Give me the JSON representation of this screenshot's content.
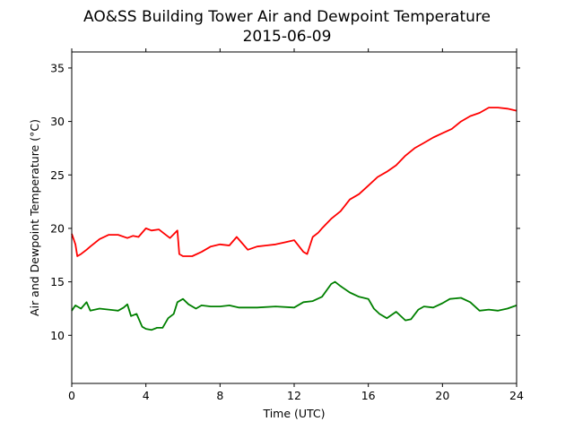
{
  "chart_data": {
    "type": "line",
    "title": "AO&SS Building Tower Air and Dewpoint Temperature",
    "subtitle": "2015-06-09",
    "xlabel": "Time (UTC)",
    "ylabel": "Air and Dewpoint Temperature (°C)",
    "xlim": [
      0,
      24
    ],
    "ylim": [
      5.5,
      36.5
    ],
    "xticks": [
      0,
      4,
      8,
      12,
      16,
      20,
      24
    ],
    "yticks": [
      10,
      15,
      20,
      25,
      30,
      35
    ],
    "grid": false,
    "series": [
      {
        "color": "#ff0000",
        "x": [
          0,
          0.1,
          0.2,
          0.3,
          0.5,
          0.8,
          1.0,
          1.5,
          2.0,
          2.5,
          3.0,
          3.3,
          3.6,
          4.0,
          4.3,
          4.7,
          5.0,
          5.3,
          5.7,
          5.8,
          6.0,
          6.5,
          7.0,
          7.5,
          8.0,
          8.5,
          8.9,
          9.2,
          9.5,
          10.0,
          10.5,
          11.0,
          11.5,
          12.0,
          12.5,
          12.7,
          13.0,
          13.3,
          13.5,
          14.0,
          14.5,
          15.0,
          15.5,
          16.0,
          16.5,
          17.0,
          17.5,
          18.0,
          18.5,
          19.0,
          19.5,
          20.0,
          20.5,
          21.0,
          21.5,
          22.0,
          22.5,
          23.0,
          23.5,
          24.0
        ],
        "values": [
          19.5,
          19.0,
          18.5,
          17.4,
          17.6,
          18.0,
          18.3,
          19.0,
          19.4,
          19.4,
          19.1,
          19.3,
          19.2,
          20.0,
          19.8,
          19.9,
          19.5,
          19.1,
          19.8,
          17.6,
          17.4,
          17.4,
          17.8,
          18.3,
          18.5,
          18.4,
          19.2,
          18.6,
          18.0,
          18.3,
          18.4,
          18.5,
          18.7,
          18.9,
          17.8,
          17.6,
          19.2,
          19.6,
          20.0,
          20.9,
          21.6,
          22.7,
          23.2,
          24.0,
          24.8,
          25.3,
          25.9,
          26.8,
          27.5,
          28.0,
          28.5,
          28.9,
          29.3,
          30.0,
          30.5,
          30.8,
          31.3,
          31.3,
          31.2,
          31.0
        ]
      },
      {
        "color": "#008000",
        "x": [
          0,
          0.2,
          0.5,
          0.8,
          1.0,
          1.5,
          2.0,
          2.5,
          2.8,
          3.0,
          3.2,
          3.5,
          3.8,
          4.0,
          4.3,
          4.6,
          4.9,
          5.2,
          5.5,
          5.7,
          6.0,
          6.3,
          6.7,
          7.0,
          7.5,
          8.0,
          8.5,
          9.0,
          9.5,
          10.0,
          11.0,
          12.0,
          12.5,
          13.0,
          13.5,
          14.0,
          14.2,
          14.5,
          15.0,
          15.5,
          16.0,
          16.3,
          16.6,
          17.0,
          17.5,
          18.0,
          18.3,
          18.7,
          19.0,
          19.5,
          20.0,
          20.4,
          21.0,
          21.5,
          22.0,
          22.5,
          23.0,
          23.5,
          24.0
        ],
        "values": [
          12.3,
          12.8,
          12.5,
          13.1,
          12.3,
          12.5,
          12.4,
          12.3,
          12.6,
          12.9,
          11.8,
          12.0,
          10.8,
          10.6,
          10.5,
          10.7,
          10.7,
          11.6,
          12.0,
          13.1,
          13.4,
          12.9,
          12.5,
          12.8,
          12.7,
          12.7,
          12.8,
          12.6,
          12.6,
          12.6,
          12.7,
          12.6,
          13.1,
          13.2,
          13.6,
          14.8,
          15.0,
          14.6,
          14.0,
          13.6,
          13.4,
          12.5,
          12.0,
          11.6,
          12.2,
          11.4,
          11.5,
          12.4,
          12.7,
          12.6,
          13.0,
          13.4,
          13.5,
          13.1,
          12.3,
          12.4,
          12.3,
          12.5,
          12.8
        ]
      }
    ]
  }
}
